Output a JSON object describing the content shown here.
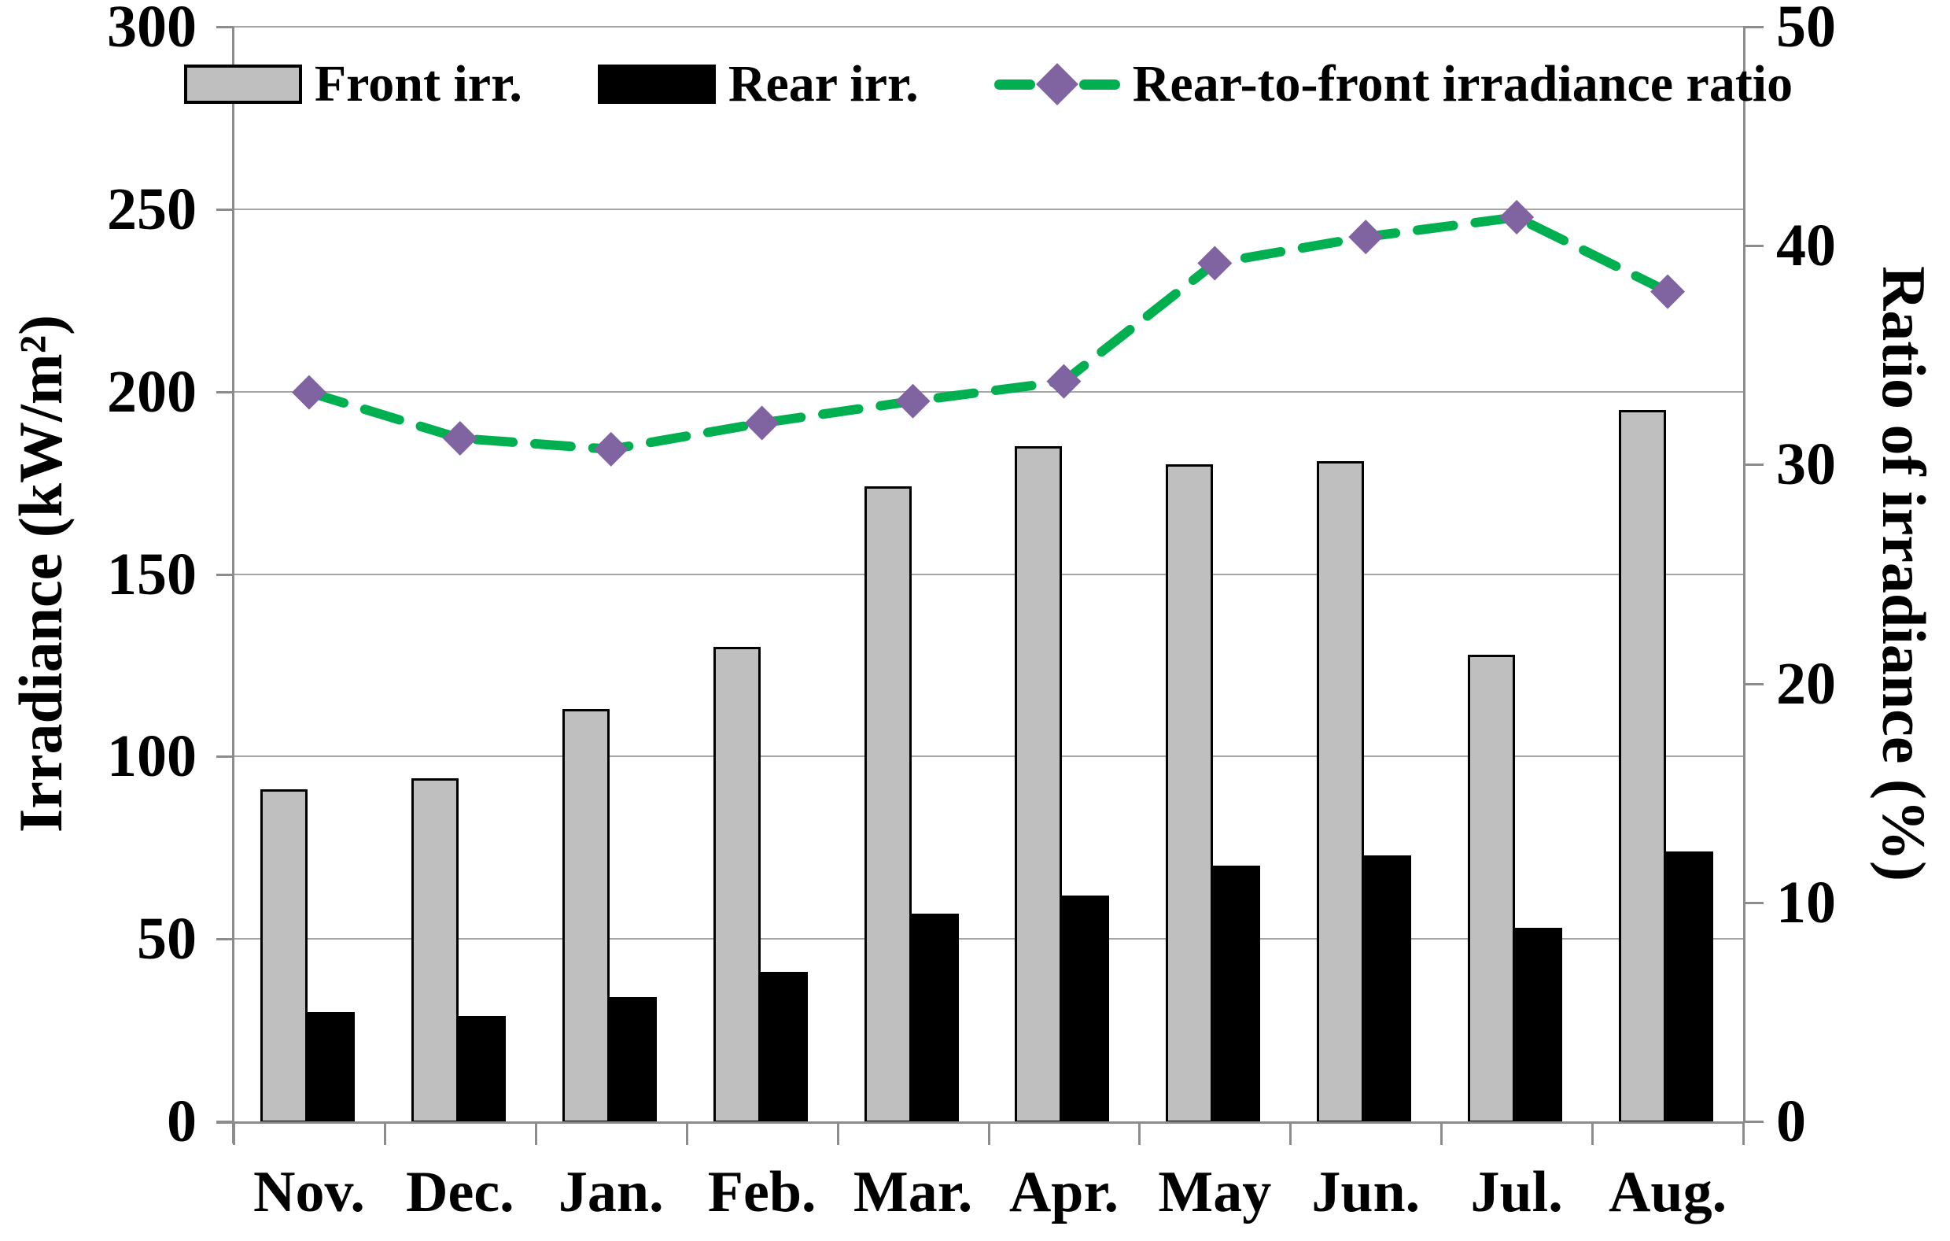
{
  "chart_data": {
    "type": "combo-bar-line",
    "categories": [
      "Nov.",
      "Dec.",
      "Jan.",
      "Feb.",
      "Mar.",
      "Apr.",
      "May",
      "Jun.",
      "Jul.",
      "Aug."
    ],
    "series": [
      {
        "name": "Front irr.",
        "type": "bar",
        "axis": "left",
        "color": "#bfbfbf",
        "border_color": "#000000",
        "values": [
          91,
          94,
          113,
          130,
          174,
          185,
          180,
          181,
          128,
          195
        ]
      },
      {
        "name": "Rear irr.",
        "type": "bar",
        "axis": "left",
        "color": "#000000",
        "border_color": "#000000",
        "values": [
          30,
          29,
          34,
          41,
          57,
          62,
          70,
          73,
          53,
          74
        ]
      },
      {
        "name": "Rear-to-front irradiance ratio",
        "type": "line",
        "axis": "right",
        "line_style": "dashed",
        "color": "#00b050",
        "marker": "diamond",
        "marker_color": "#8064a2",
        "values": [
          33.3,
          31.2,
          30.7,
          31.9,
          32.9,
          33.8,
          39.2,
          40.4,
          41.3,
          37.9
        ]
      }
    ],
    "left_axis": {
      "title": "Irradiance (kW/m²)",
      "min": 0,
      "max": 300,
      "step": 50,
      "tick_labels": [
        "0",
        "50",
        "100",
        "150",
        "200",
        "250",
        "300"
      ]
    },
    "right_axis": {
      "title": "Ratio of irradiance (%)",
      "min": 0,
      "max": 50,
      "step": 10,
      "tick_labels": [
        "0",
        "10",
        "20",
        "30",
        "40",
        "50"
      ]
    },
    "grid": {
      "horizontal": true,
      "color": "#a6a6a6"
    },
    "legend_position": "top-inside"
  }
}
